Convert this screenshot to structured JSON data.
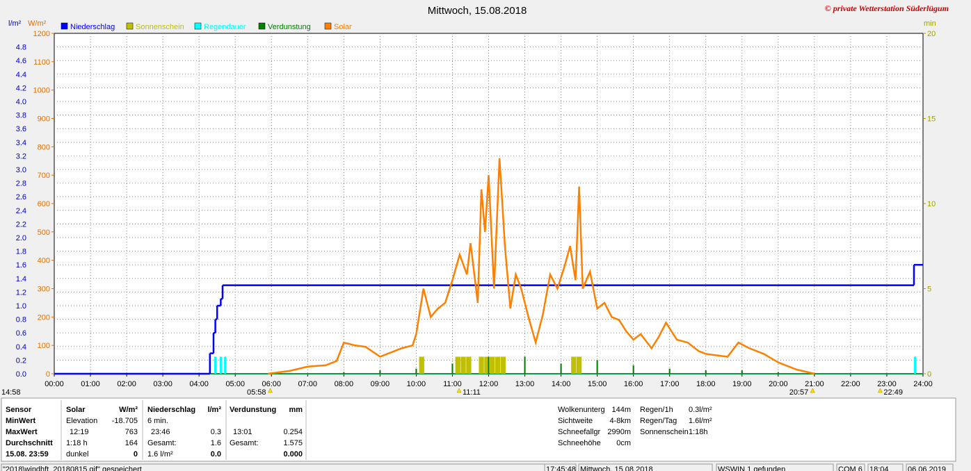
{
  "chart_data": {
    "type": "line",
    "title": "Mittwoch, 15.08.2018",
    "watermark": "© private Wetterstation Süderlügum",
    "y_label": "l/m²",
    "y2_label": "W/m²",
    "y3_label": "min",
    "xlim": [
      0,
      24
    ],
    "xticks": [
      {
        "value": 0,
        "label": "00:00"
      },
      {
        "value": 1,
        "label": "01:00"
      },
      {
        "value": 2,
        "label": "02:00"
      },
      {
        "value": 3,
        "label": "03:00"
      },
      {
        "value": 4,
        "label": "04:00"
      },
      {
        "value": 5,
        "label": "05:00"
      },
      {
        "value": 6,
        "label": "06:00"
      },
      {
        "value": 7,
        "label": "07:00"
      },
      {
        "value": 8,
        "label": "08:00"
      },
      {
        "value": 9,
        "label": "09:00"
      },
      {
        "value": 10,
        "label": "10:00"
      },
      {
        "value": 11,
        "label": "11:00"
      },
      {
        "value": 12,
        "label": "12:00"
      },
      {
        "value": 13,
        "label": "13:00"
      },
      {
        "value": 14,
        "label": "14:00"
      },
      {
        "value": 15,
        "label": "15:00"
      },
      {
        "value": 16,
        "label": "16:00"
      },
      {
        "value": 17,
        "label": "17:00"
      },
      {
        "value": 18,
        "label": "18:00"
      },
      {
        "value": 19,
        "label": "19:00"
      },
      {
        "value": 20,
        "label": "20:00"
      },
      {
        "value": 21,
        "label": "21:00"
      },
      {
        "value": 22,
        "label": "22:00"
      },
      {
        "value": 23,
        "label": "23:00"
      },
      {
        "value": 24,
        "label": "24:00"
      }
    ],
    "ylim": [
      0,
      5
    ],
    "yticks": [
      {
        "value": 0,
        "label": "0.0"
      },
      0.2,
      0.4,
      0.6,
      0.8,
      {
        "value": 1,
        "label": "1.0"
      },
      1.2,
      1.4,
      1.6,
      1.8,
      {
        "value": 2,
        "label": "2.0"
      },
      2.2,
      2.4,
      2.6,
      2.8,
      {
        "value": 3,
        "label": "3.0"
      },
      3.2,
      3.4,
      3.6,
      3.8,
      {
        "value": 4,
        "label": "4.0"
      },
      4.2,
      4.4,
      4.6,
      4.8
    ],
    "y2lim": [
      0,
      1200
    ],
    "y2ticks": [
      0,
      100,
      200,
      300,
      400,
      500,
      600,
      700,
      800,
      900,
      1000,
      1100,
      1200
    ],
    "y3lim": [
      0,
      20
    ],
    "y3ticks": [
      0,
      5,
      10,
      15,
      20
    ],
    "grid": true,
    "day_length": "14:58",
    "sun_markers": [
      {
        "x": 5.967,
        "label": "05:58"
      },
      {
        "x": 11.183,
        "label": "11:11"
      },
      {
        "x": 20.95,
        "label": "20:57"
      },
      {
        "x": 22.817,
        "label": "22:49"
      }
    ],
    "series": [
      {
        "name": "Niederschlag",
        "color": "#0000ff",
        "axis": "y",
        "kind": "step",
        "x": [
          0,
          4.3,
          4.4,
          4.45,
          4.5,
          4.6,
          4.65,
          23.75
        ],
        "values": [
          0,
          0.3,
          0.6,
          0.8,
          1.0,
          1.1,
          1.3,
          1.6
        ]
      },
      {
        "name": "Sonnenschein",
        "color": "#c0c000",
        "axis": "y3",
        "kind": "bar",
        "x": [
          10.15,
          11.15,
          11.3,
          11.45,
          11.8,
          11.95,
          12.1,
          12.25,
          12.4,
          14.35,
          14.5
        ],
        "values": [
          1,
          1,
          1,
          1,
          1,
          1,
          1,
          1,
          1,
          1,
          1
        ]
      },
      {
        "name": "Regendauer",
        "color": "#00ffff",
        "axis": "y3",
        "kind": "bar",
        "x": [
          4.45,
          4.6,
          4.72,
          23.78
        ],
        "values": [
          1,
          1,
          1,
          1
        ]
      },
      {
        "name": "Verdunstung",
        "color": "#008000",
        "axis": "y3",
        "kind": "bar",
        "x": [
          8,
          9,
          10,
          11,
          12,
          13,
          14,
          15,
          16,
          17,
          18,
          19,
          20
        ],
        "values": [
          0.1,
          0.2,
          0.3,
          0.6,
          1.0,
          1.0,
          0.6,
          0.8,
          0.5,
          0.3,
          0.2,
          0.2,
          0.1
        ]
      },
      {
        "name": "Solar",
        "color": "#ff8000",
        "axis": "y2",
        "kind": "line",
        "x": [
          5.9,
          6.5,
          7.0,
          7.5,
          7.8,
          8.0,
          8.3,
          8.6,
          9.0,
          9.3,
          9.6,
          9.9,
          10.0,
          10.2,
          10.4,
          10.6,
          10.8,
          11.0,
          11.2,
          11.4,
          11.5,
          11.7,
          11.8,
          11.9,
          12.0,
          12.15,
          12.3,
          12.45,
          12.6,
          12.75,
          12.9,
          13.1,
          13.3,
          13.5,
          13.7,
          13.9,
          14.1,
          14.25,
          14.4,
          14.5,
          14.6,
          14.8,
          15.0,
          15.2,
          15.4,
          15.6,
          15.8,
          16.0,
          16.2,
          16.5,
          16.7,
          16.9,
          17.2,
          17.5,
          17.8,
          18.0,
          18.3,
          18.6,
          18.9,
          19.2,
          19.6,
          20.0,
          20.5,
          20.9,
          21.0
        ],
        "values": [
          0,
          10,
          25,
          30,
          45,
          110,
          100,
          95,
          60,
          75,
          90,
          100,
          140,
          300,
          200,
          230,
          250,
          330,
          420,
          350,
          460,
          250,
          650,
          500,
          700,
          300,
          760,
          450,
          230,
          350,
          300,
          200,
          110,
          210,
          350,
          300,
          380,
          450,
          330,
          660,
          300,
          360,
          230,
          250,
          200,
          190,
          150,
          120,
          140,
          90,
          130,
          180,
          120,
          110,
          80,
          70,
          65,
          60,
          110,
          90,
          70,
          40,
          15,
          3,
          0
        ]
      }
    ]
  },
  "stats": {
    "row_labels": [
      "Sensor",
      "MinWert",
      "MaxWert",
      "Durchschnitt",
      "15.08. 23:59"
    ],
    "blocks": [
      {
        "header": "Solar",
        "unit": "W/m²",
        "rows": [
          {
            "left": "Elevation",
            "right": "-18.705"
          },
          {
            "left": "12:19",
            "right": "763"
          },
          {
            "left": "1:18 h",
            "right": "164"
          },
          {
            "left": "dunkel",
            "right": "0"
          }
        ]
      },
      {
        "header": "Niederschlag",
        "unit": "l/m²",
        "rows": [
          {
            "left": "6 min."
          },
          {
            "left": "23:46",
            "right": "0.3"
          },
          {
            "left": "Gesamt:",
            "right": "1.6"
          },
          {
            "left": "1.6 l/m²",
            "right": "0.0"
          }
        ]
      },
      {
        "header": "Verdunstung",
        "unit": "mm",
        "rows": [
          {},
          {
            "left": "13:01",
            "right": "0.254"
          },
          {
            "left": "Gesamt:",
            "right": "1.575"
          },
          {
            "right": "0.000"
          }
        ]
      }
    ]
  },
  "weather_info": [
    [
      [
        "Wolkenunterg",
        "144m"
      ],
      [
        "Sichtweite",
        "4-8km"
      ],
      [
        "Schneefallgr",
        "2990m"
      ],
      [
        "Schneehöhe",
        "0cm"
      ]
    ],
    [
      [
        "Regen/1h",
        "0.3l/m²"
      ],
      [
        "Regen/Tag",
        "1.6l/m²"
      ],
      [
        "Sonnenschein",
        "1:18h"
      ]
    ]
  ],
  "status_bar": [
    "\"2018\\windhft_20180815.gif\" gespeichert",
    "17:45:48",
    "Mittwoch, 15.08.2018",
    "WSWIN 1 gefunden",
    "COM 6",
    "18:04",
    "06.06.2019"
  ]
}
